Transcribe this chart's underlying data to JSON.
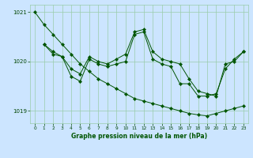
{
  "title": "Graphe pression niveau de la mer (hPa)",
  "bg_color": "#cce5ff",
  "grid_color": "#99ccaa",
  "line_color": "#005500",
  "text_color": "#004400",
  "xlim": [
    -0.5,
    23.5
  ],
  "ylim": [
    1018.75,
    1021.15
  ],
  "yticks": [
    1019,
    1020,
    1021
  ],
  "xticks": [
    0,
    1,
    2,
    3,
    4,
    5,
    6,
    7,
    8,
    9,
    10,
    11,
    12,
    13,
    14,
    15,
    16,
    17,
    18,
    19,
    20,
    21,
    22,
    23
  ],
  "series1": {
    "x": [
      0,
      1,
      2,
      3,
      4,
      5,
      6,
      7,
      8,
      9,
      10,
      11,
      12,
      13,
      14,
      15,
      16,
      17,
      18,
      19,
      20,
      21,
      22,
      23
    ],
    "y": [
      1021.0,
      1020.75,
      1020.55,
      1020.35,
      1020.15,
      1019.95,
      1019.8,
      1019.65,
      1019.55,
      1019.45,
      1019.35,
      1019.25,
      1019.2,
      1019.15,
      1019.1,
      1019.05,
      1019.0,
      1018.95,
      1018.92,
      1018.9,
      1018.95,
      1019.0,
      1019.05,
      1019.1
    ]
  },
  "series2": {
    "x": [
      1,
      2,
      3,
      4,
      5,
      6,
      7,
      8,
      9,
      10,
      11,
      12,
      13,
      14,
      15,
      16,
      17,
      18,
      19,
      20,
      21,
      22,
      23
    ],
    "y": [
      1020.35,
      1020.2,
      1020.1,
      1019.85,
      1019.75,
      1020.1,
      1020.0,
      1019.95,
      1020.05,
      1020.15,
      1020.6,
      1020.65,
      1020.2,
      1020.05,
      1020.0,
      1019.95,
      1019.65,
      1019.4,
      1019.35,
      1019.3,
      1019.95,
      1020.0,
      1020.2
    ]
  },
  "series3": {
    "x": [
      1,
      2,
      3,
      4,
      5,
      6,
      7,
      8,
      9,
      10,
      11,
      12,
      13,
      14,
      15,
      16,
      17,
      18,
      19,
      20,
      21,
      22,
      23
    ],
    "y": [
      1020.35,
      1020.15,
      1020.1,
      1019.7,
      1019.6,
      1020.05,
      1019.95,
      1019.9,
      1019.95,
      1020.0,
      1020.55,
      1020.6,
      1020.05,
      1019.95,
      1019.9,
      1019.55,
      1019.55,
      1019.3,
      1019.3,
      1019.35,
      1019.85,
      1020.05,
      1020.2
    ]
  }
}
